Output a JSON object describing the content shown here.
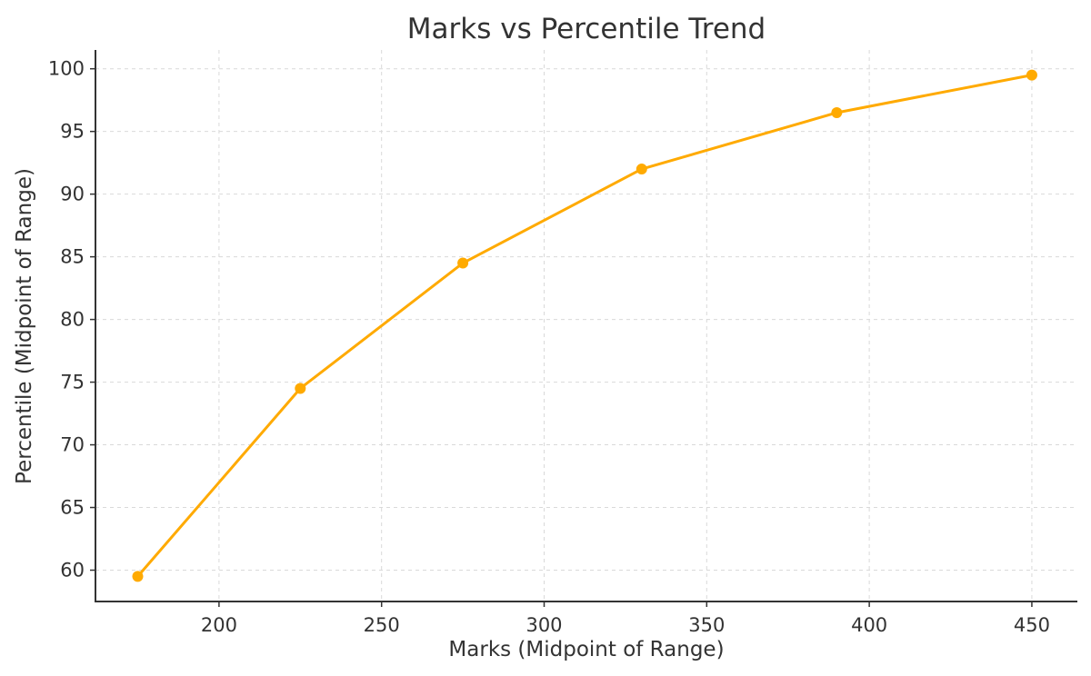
{
  "chart_data": {
    "type": "line",
    "title": "Marks vs Percentile Trend",
    "xlabel": "Marks (Midpoint of Range)",
    "ylabel": "Percentile (Midpoint of Range)",
    "xlim": [
      162,
      464
    ],
    "ylim": [
      57.5,
      101.5
    ],
    "x_ticks": [
      200,
      250,
      300,
      350,
      400,
      450
    ],
    "y_ticks": [
      60,
      65,
      70,
      75,
      80,
      85,
      90,
      95,
      100
    ],
    "grid": true,
    "series": [
      {
        "color": "#FFAA00",
        "points": [
          {
            "x": 175,
            "y": 59.5
          },
          {
            "x": 225,
            "y": 74.5
          },
          {
            "x": 275,
            "y": 84.5
          },
          {
            "x": 330,
            "y": 92
          },
          {
            "x": 390,
            "y": 96.5
          },
          {
            "x": 450,
            "y": 99.5
          }
        ]
      }
    ]
  }
}
